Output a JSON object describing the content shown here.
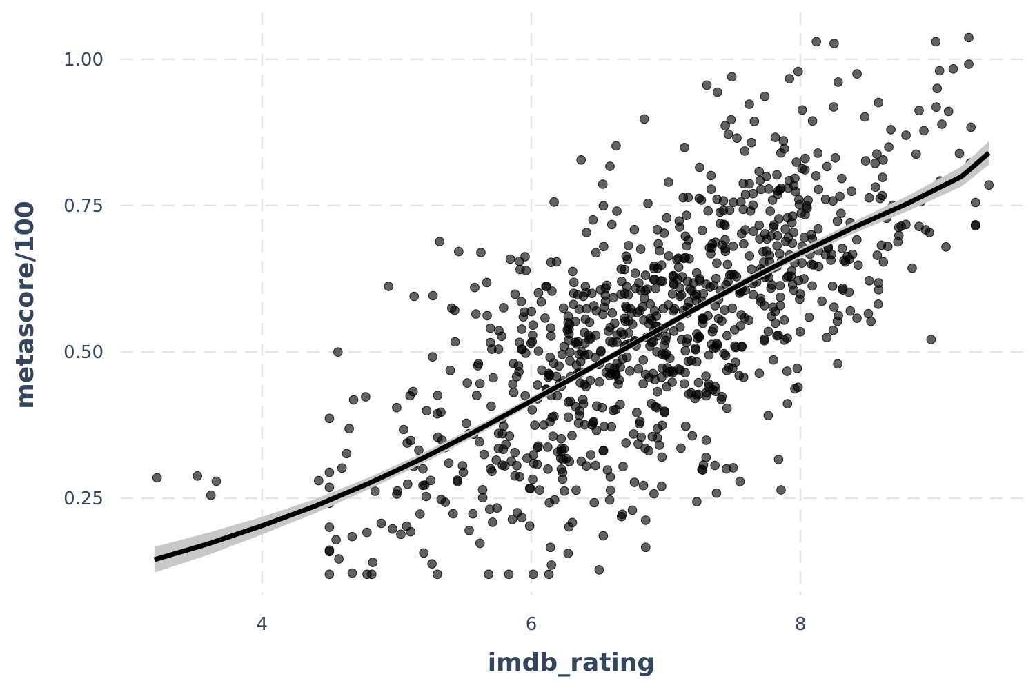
{
  "chart_data": {
    "type": "scatter",
    "title": "",
    "xlabel": "imdb_rating",
    "ylabel": "metascore/100",
    "xlim": [
      2.95,
      9.65
    ],
    "ylim": [
      0.085,
      1.08
    ],
    "x_ticks": [
      4,
      6,
      8
    ],
    "y_ticks": [
      0.25,
      0.5,
      0.75,
      1.0
    ],
    "x_tick_labels": [
      "4",
      "6",
      "8"
    ],
    "y_tick_labels": [
      "0.25",
      "0.50",
      "0.75",
      "1.00"
    ],
    "grid": true,
    "legend": "none",
    "point_color": "#000000",
    "point_alpha": 0.62,
    "fit_line": {
      "method": "logistic smooth",
      "color": "#000000",
      "band_color": "#c8c8c8",
      "x": [
        3.2,
        3.6,
        4.0,
        4.4,
        4.8,
        5.2,
        5.6,
        6.0,
        6.4,
        6.8,
        7.2,
        7.6,
        8.0,
        8.4,
        8.8,
        9.2,
        9.4
      ],
      "y": [
        0.145,
        0.172,
        0.203,
        0.237,
        0.276,
        0.319,
        0.366,
        0.416,
        0.467,
        0.519,
        0.571,
        0.621,
        0.669,
        0.713,
        0.754,
        0.8,
        0.84
      ],
      "lower": [
        0.123,
        0.153,
        0.188,
        0.225,
        0.266,
        0.31,
        0.358,
        0.409,
        0.461,
        0.513,
        0.565,
        0.614,
        0.661,
        0.703,
        0.741,
        0.783,
        0.82
      ],
      "upper": [
        0.167,
        0.191,
        0.218,
        0.249,
        0.286,
        0.328,
        0.374,
        0.423,
        0.473,
        0.525,
        0.577,
        0.628,
        0.677,
        0.723,
        0.767,
        0.817,
        0.86
      ]
    },
    "points_generated": {
      "count": 900,
      "x_mean": 6.9,
      "x_sd": 0.95,
      "x_min": 4.5,
      "x_max": 9.3,
      "residual_sd": 0.125,
      "y_min": 0.12,
      "y_max": 1.03,
      "seed": 20240611
    },
    "points": [
      [
        3.22,
        0.285
      ],
      [
        3.52,
        0.288
      ],
      [
        3.62,
        0.255
      ],
      [
        3.66,
        0.279
      ],
      [
        4.42,
        0.28
      ],
      [
        4.55,
        0.179
      ],
      [
        4.67,
        0.122
      ],
      [
        4.68,
        0.418
      ],
      [
        4.78,
        0.12
      ],
      [
        4.84,
        0.262
      ],
      [
        4.94,
        0.612
      ],
      [
        5.27,
        0.596
      ],
      [
        5.58,
        0.61
      ],
      [
        6.17,
        0.756
      ],
      [
        6.37,
        0.828
      ],
      [
        6.28,
        0.201
      ],
      [
        6.63,
        0.852
      ],
      [
        6.84,
        0.898
      ],
      [
        7.23,
        0.244
      ],
      [
        7.49,
        0.97
      ],
      [
        7.45,
        0.3
      ],
      [
        7.3,
        0.425
      ],
      [
        7.5,
        0.302
      ],
      [
        8.25,
        1.027
      ],
      [
        8.28,
        0.961
      ],
      [
        9.25,
        1.037
      ],
      [
        9.4,
        0.785
      ],
      [
        9.1,
        0.911
      ],
      [
        9.05,
        0.889
      ],
      [
        8.83,
        0.643
      ],
      [
        8.58,
        0.926
      ],
      [
        8.42,
        0.975
      ]
    ]
  }
}
